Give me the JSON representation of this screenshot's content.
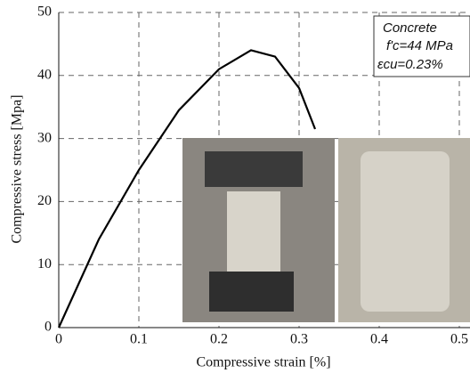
{
  "chart_data": {
    "type": "line",
    "x_label": "Compressive strain [%]",
    "y_label": "Compressive stress [Mpa]",
    "x": [
      0,
      0.05,
      0.1,
      0.15,
      0.2,
      0.24,
      0.27,
      0.3,
      0.32
    ],
    "series": [
      {
        "color": "#000000",
        "values": [
          0,
          14,
          25,
          34.5,
          41,
          44,
          43,
          38,
          31.5
        ]
      }
    ],
    "xlim": [
      0,
      0.5
    ],
    "xticks": [
      0,
      0.1,
      0.2,
      0.3,
      0.4,
      0.5
    ],
    "ylim": [
      0,
      50
    ],
    "yticks": [
      0,
      10,
      20,
      30,
      40,
      50
    ],
    "grid": true,
    "annotations": [
      "Concrete",
      "f'c=44 MPa",
      "εcu=0.23%"
    ]
  }
}
